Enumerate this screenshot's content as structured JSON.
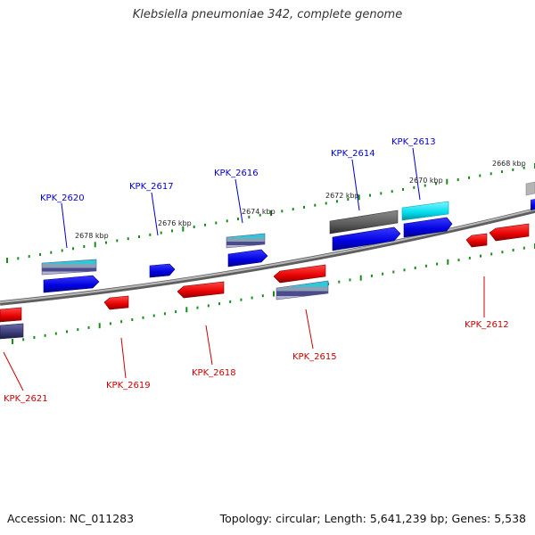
{
  "title": "Klebsiella pneumoniae 342, complete genome",
  "footer": {
    "accession": "Accession: NC_011283",
    "summary": "Topology: circular; Length: 5,641,239 bp; Genes: 5,538"
  },
  "colors": {
    "backbone": "#8c8c8c",
    "forward_gene": "#0000ee",
    "reverse_gene": "#ee0000",
    "forward_label": "#0000cc",
    "reverse_label": "#cc0000",
    "tick": "#1a8c1a",
    "cyan_feature": "#00d7e8",
    "gray_feature": "#666666",
    "slate_feature": "#3c3c78"
  },
  "kbp_labels": [
    "2668 kbp",
    "2670 kbp",
    "2672 kbp",
    "2674 kbp",
    "2676 kbp",
    "2678 kbp"
  ],
  "forward_genes": [
    {
      "label": "KPK_2613",
      "feature": "cyan-forward"
    },
    {
      "label": "KPK_2614",
      "feature": "gray-forward"
    },
    {
      "label": "KPK_2616",
      "feature": "striped-forward"
    },
    {
      "label": "KPK_2617",
      "feature": "forward"
    },
    {
      "label": "KPK_2620",
      "feature": "striped-forward"
    }
  ],
  "reverse_genes": [
    {
      "label": "KPK_2612",
      "feature": "reverse"
    },
    {
      "label": "KPK_2615",
      "feature": "striped-reverse"
    },
    {
      "label": "KPK_2618",
      "feature": "reverse"
    },
    {
      "label": "KPK_2619",
      "feature": "reverse"
    },
    {
      "label": "KPK_2621",
      "feature": "striped-reverse"
    }
  ]
}
